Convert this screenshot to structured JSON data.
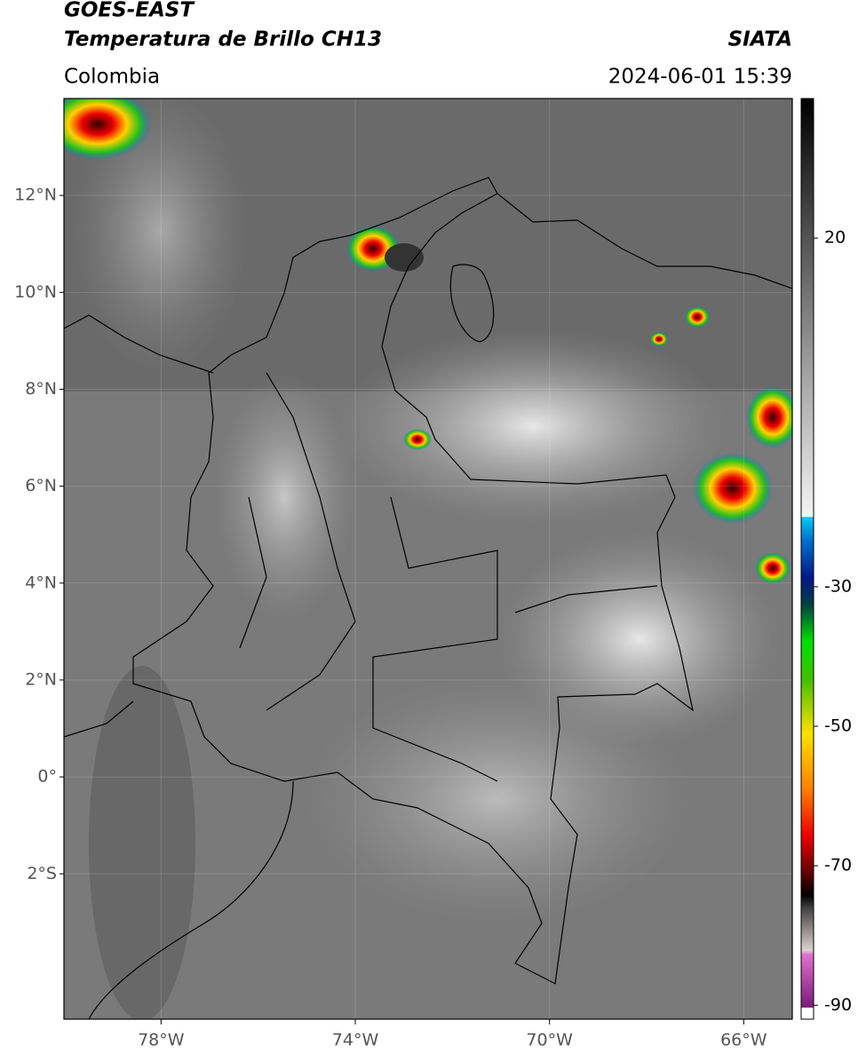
{
  "header": {
    "satellite": "GOES-EAST",
    "product": "Temperatura de Brillo CH13",
    "agency": "SIATA",
    "region": "Colombia",
    "datetime": "2024-06-01 15:39"
  },
  "map": {
    "xlim": [
      -80,
      -65
    ],
    "ylim": [
      -5,
      14
    ],
    "xticks": [
      {
        "value": -78,
        "label": "78°W"
      },
      {
        "value": -74,
        "label": "74°W"
      },
      {
        "value": -70,
        "label": "70°W"
      },
      {
        "value": -66,
        "label": "66°W"
      }
    ],
    "yticks": [
      {
        "value": 12,
        "label": "12°N"
      },
      {
        "value": 10,
        "label": "10°N"
      },
      {
        "value": 8,
        "label": "8°N"
      },
      {
        "value": 6,
        "label": "6°N"
      },
      {
        "value": 4,
        "label": "4°N"
      },
      {
        "value": 2,
        "label": "2°N"
      },
      {
        "value": 0,
        "label": "0°"
      },
      {
        "value": -2,
        "label": "2°S"
      }
    ],
    "grid": true
  },
  "colorbar": {
    "clim": [
      -92,
      40
    ],
    "ticks": [
      20,
      -30,
      -50,
      -70,
      -90
    ]
  }
}
